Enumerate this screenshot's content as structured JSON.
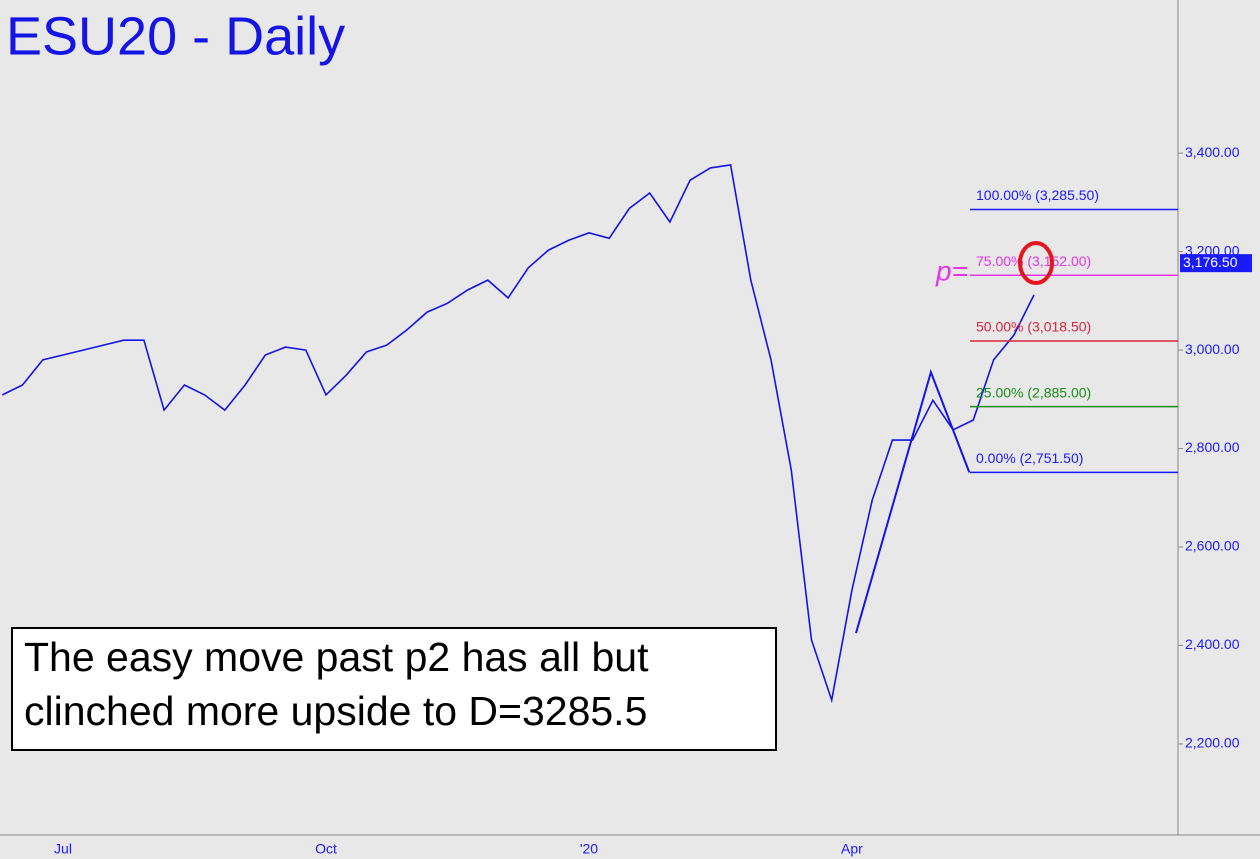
{
  "chart_data": {
    "type": "line",
    "title": "ESU20 - Daily",
    "categories": [
      null,
      null,
      null,
      "Jul",
      null,
      null,
      null,
      null,
      null,
      null,
      null,
      null,
      null,
      null,
      null,
      null,
      "Oct",
      null,
      null,
      null,
      null,
      null,
      null,
      null,
      null,
      null,
      null,
      null,
      null,
      "'20",
      null,
      null,
      null,
      null,
      null,
      null,
      null,
      null,
      null,
      null,
      null,
      null,
      "Apr",
      null,
      null,
      null,
      null,
      null,
      null,
      null,
      null,
      null
    ],
    "series": [
      {
        "name": "ESU20",
        "color": "#1414e6",
        "values": [
          2909,
          2929,
          2980,
          2990,
          3000,
          3010,
          3020,
          3020,
          2878,
          2929,
          2909,
          2878,
          2929,
          2990,
          3006,
          3000,
          2909,
          2949,
          2996,
          3010,
          3041,
          3077,
          3095,
          3122,
          3142,
          3106,
          3167,
          3203,
          3223,
          3238,
          3227,
          3288,
          3319,
          3260,
          3345,
          3370,
          3376,
          3142,
          2980,
          2756,
          2411,
          2289,
          2513,
          2695,
          2817,
          2817,
          2898,
          2838,
          2858,
          2980,
          3030,
          3112
        ]
      }
    ],
    "ylim": [
      2015,
      3711
    ],
    "yticks": [
      {
        "value": 2200,
        "label": "2,200.00"
      },
      {
        "value": 2400,
        "label": "2,400.00"
      },
      {
        "value": 2600,
        "label": "2,600.00"
      },
      {
        "value": 2800,
        "label": "2,800.00"
      },
      {
        "value": 3000,
        "label": "3,000.00"
      },
      {
        "value": 3200,
        "label": "3,200.00"
      },
      {
        "value": 3400,
        "label": "3,400.00"
      }
    ],
    "levels": [
      {
        "label": "100.00% (3,285.50)",
        "value": 3285.5,
        "color": "#1a1aff"
      },
      {
        "label": "75.00% (3,152.00)",
        "value": 3152,
        "color": "#e633e6"
      },
      {
        "label": "50.00% (3,018.50)",
        "value": 3018.5,
        "color": "#d9263d"
      },
      {
        "label": "25.00% (2,885.00)",
        "value": 2885,
        "color": "#1a8c1a"
      },
      {
        "label": "0.00% (2,751.50)",
        "value": 2751.5,
        "color": "#1a1aff"
      }
    ],
    "last_price": {
      "value": 3176.5,
      "label": "3,176.50"
    },
    "pattern": {
      "x": [
        42.2,
        45.9,
        47.8
      ],
      "values": [
        2425,
        2955,
        2751.5
      ]
    },
    "p_label": "p=",
    "note": [
      "The easy move past p2 has all but",
      "clinched more upside to D=3285.5"
    ]
  }
}
